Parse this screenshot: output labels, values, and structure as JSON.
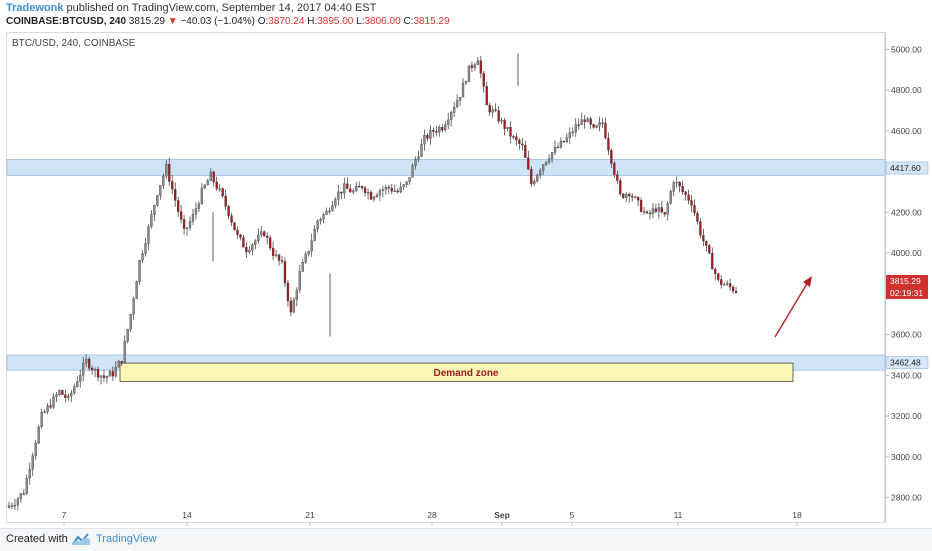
{
  "header": {
    "author": "Tradewonk",
    "published": "published on TradingView.com, September 14, 2017 04:40 EST",
    "symbol": "COINBASE:BTCUSD, 240",
    "last": "3815.29",
    "arrow": "▼",
    "change": "−40.03 (−1.04%)",
    "o_label": "O:",
    "o_value": "3870.24",
    "h_label": "H:",
    "h_value": "3895.00",
    "l_label": "L:",
    "l_value": "3806.00",
    "c_label": "C:",
    "c_value": "3815.29"
  },
  "chart_data": {
    "type": "candlestick",
    "title": "BTC/USD, 240, COINBASE",
    "x_tick_labels": [
      "7",
      "14",
      "21",
      "28",
      "Sep",
      "5",
      "11",
      "18"
    ],
    "y_tick_labels": [
      "5000.00",
      "4800.00",
      "4600.00",
      "4400.00",
      "4200.00",
      "4000.00",
      "3600.00",
      "3400.00",
      "3200.00",
      "3000.00",
      "2800.00"
    ],
    "ylim": [
      2680,
      5080
    ],
    "price_tags": [
      {
        "label": "4417.60",
        "value": 4417.6,
        "color": "#d6e6f7"
      },
      {
        "label": "3815.29",
        "value": 3815.29,
        "color": "#d0312d"
      },
      {
        "label": "02:19:31",
        "value": 3780,
        "color": "#d0312d"
      },
      {
        "label": "3462.48",
        "value": 3462.48,
        "color": "#d6e6f7"
      }
    ],
    "resistance_band": [
      4380,
      4460
    ],
    "support_band": [
      3425,
      3500
    ],
    "demand_zone": {
      "label": "Demand zone",
      "low": 3370,
      "high": 3460
    },
    "close_path": [
      2750,
      2780,
      2830,
      3020,
      3200,
      3260,
      3320,
      3280,
      3380,
      3470,
      3420,
      3390,
      3410,
      3480,
      3700,
      3960,
      4120,
      4300,
      4420,
      4260,
      4100,
      4180,
      4300,
      4380,
      4300,
      4200,
      4080,
      4020,
      4060,
      4100,
      4000,
      3940,
      3700,
      3900,
      4020,
      4160,
      4200,
      4280,
      4320,
      4300,
      4330,
      4280,
      4310,
      4320,
      4300,
      4340,
      4460,
      4560,
      4600,
      4620,
      4700,
      4780,
      4900,
      4960,
      4720,
      4680,
      4620,
      4560,
      4520,
      4340,
      4420,
      4480,
      4520,
      4560,
      4620,
      4660,
      4600,
      4640,
      4460,
      4280,
      4300,
      4240,
      4180,
      4220,
      4180,
      4360,
      4300,
      4250,
      4100,
      3980,
      3860,
      3840,
      3815
    ],
    "colors": {
      "up": "#8a8a8a",
      "down": "#a11d21",
      "arrow": "#b22222",
      "band": "#cfe3f7",
      "zone": "#fbf6b4"
    }
  },
  "footer": {
    "created": "Created with",
    "brand": "TradingView"
  }
}
